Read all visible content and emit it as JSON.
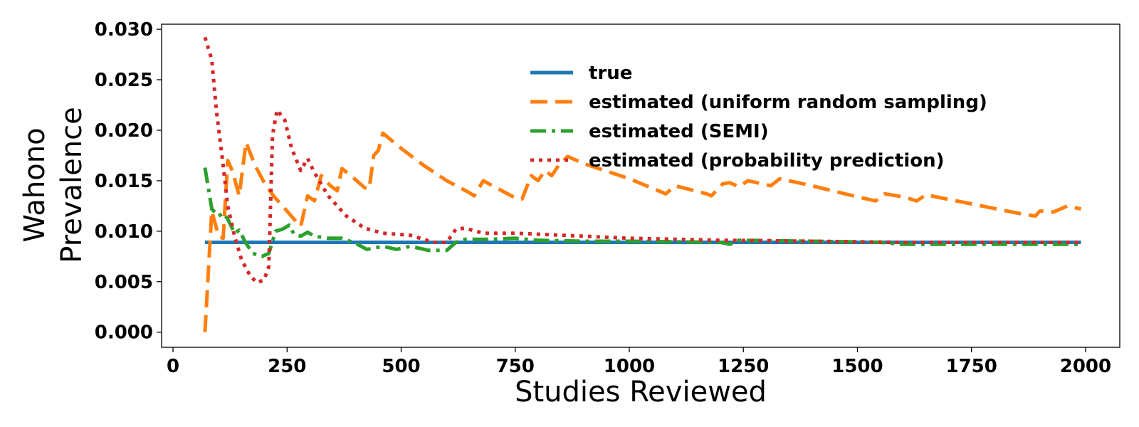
{
  "chart_data": {
    "type": "line",
    "title": "",
    "xlabel": "Studies Reviewed",
    "ylabel_lines": [
      "Wahono",
      "Prevalence"
    ],
    "xlim": [
      -25,
      2075
    ],
    "ylim": [
      -0.0015,
      0.0305
    ],
    "xticks": [
      0,
      250,
      500,
      750,
      1000,
      1250,
      1500,
      1750,
      2000
    ],
    "xtick_labels": [
      "0",
      "250",
      "500",
      "750",
      "1000",
      "1250",
      "1500",
      "1750",
      "2000"
    ],
    "yticks": [
      0.0,
      0.005,
      0.01,
      0.015,
      0.02,
      0.025,
      0.03
    ],
    "ytick_labels": [
      "0.000",
      "0.005",
      "0.010",
      "0.015",
      "0.020",
      "0.025",
      "0.030"
    ],
    "grid": false,
    "legend_position": "upper-center",
    "series": [
      {
        "name": "true",
        "color": "#1f77b4",
        "dash": "solid",
        "points": [
          [
            70,
            0.0089
          ],
          [
            1990,
            0.0089
          ]
        ]
      },
      {
        "name": "estimated (uniform random sampling)",
        "color": "#ff7f0e",
        "dash": "dashed",
        "points": [
          [
            70,
            0.0
          ],
          [
            85,
            0.012
          ],
          [
            100,
            0.0095
          ],
          [
            110,
            0.0093
          ],
          [
            120,
            0.017
          ],
          [
            130,
            0.016
          ],
          [
            145,
            0.0135
          ],
          [
            160,
            0.0188
          ],
          [
            180,
            0.0165
          ],
          [
            200,
            0.0148
          ],
          [
            220,
            0.0135
          ],
          [
            240,
            0.0125
          ],
          [
            265,
            0.0112
          ],
          [
            280,
            0.0105
          ],
          [
            295,
            0.0135
          ],
          [
            310,
            0.013
          ],
          [
            325,
            0.0155
          ],
          [
            345,
            0.0145
          ],
          [
            360,
            0.014
          ],
          [
            370,
            0.0162
          ],
          [
            390,
            0.0155
          ],
          [
            420,
            0.0143
          ],
          [
            430,
            0.0142
          ],
          [
            440,
            0.0175
          ],
          [
            450,
            0.018
          ],
          [
            460,
            0.0197
          ],
          [
            500,
            0.0182
          ],
          [
            550,
            0.0165
          ],
          [
            600,
            0.015
          ],
          [
            650,
            0.0138
          ],
          [
            660,
            0.0135
          ],
          [
            680,
            0.015
          ],
          [
            700,
            0.0145
          ],
          [
            750,
            0.0133
          ],
          [
            765,
            0.0132
          ],
          [
            785,
            0.0155
          ],
          [
            800,
            0.015
          ],
          [
            815,
            0.016
          ],
          [
            830,
            0.0155
          ],
          [
            845,
            0.0165
          ],
          [
            865,
            0.0174
          ],
          [
            900,
            0.0167
          ],
          [
            1000,
            0.0152
          ],
          [
            1080,
            0.0137
          ],
          [
            1100,
            0.0145
          ],
          [
            1170,
            0.0137
          ],
          [
            1180,
            0.0135
          ],
          [
            1205,
            0.0147
          ],
          [
            1220,
            0.0148
          ],
          [
            1240,
            0.0144
          ],
          [
            1260,
            0.015
          ],
          [
            1310,
            0.0145
          ],
          [
            1330,
            0.0152
          ],
          [
            1400,
            0.0145
          ],
          [
            1500,
            0.0134
          ],
          [
            1540,
            0.013
          ],
          [
            1560,
            0.0137
          ],
          [
            1600,
            0.0134
          ],
          [
            1630,
            0.013
          ],
          [
            1650,
            0.0136
          ],
          [
            1750,
            0.0127
          ],
          [
            1850,
            0.0118
          ],
          [
            1890,
            0.0115
          ],
          [
            1900,
            0.012
          ],
          [
            1930,
            0.0119
          ],
          [
            1960,
            0.0125
          ],
          [
            1990,
            0.0122
          ]
        ]
      },
      {
        "name": "estimated (SEMI)",
        "color": "#2ca02c",
        "dash": "dashdot",
        "points": [
          [
            70,
            0.0163
          ],
          [
            85,
            0.0122
          ],
          [
            100,
            0.0115
          ],
          [
            110,
            0.0118
          ],
          [
            120,
            0.0112
          ],
          [
            135,
            0.0098
          ],
          [
            145,
            0.0101
          ],
          [
            160,
            0.0088
          ],
          [
            175,
            0.0078
          ],
          [
            195,
            0.0075
          ],
          [
            210,
            0.0078
          ],
          [
            225,
            0.01
          ],
          [
            240,
            0.0102
          ],
          [
            255,
            0.0106
          ],
          [
            265,
            0.0097
          ],
          [
            280,
            0.0095
          ],
          [
            295,
            0.0099
          ],
          [
            310,
            0.0095
          ],
          [
            340,
            0.0093
          ],
          [
            370,
            0.0093
          ],
          [
            400,
            0.0088
          ],
          [
            425,
            0.0082
          ],
          [
            460,
            0.0085
          ],
          [
            490,
            0.0082
          ],
          [
            520,
            0.0085
          ],
          [
            560,
            0.0081
          ],
          [
            600,
            0.0081
          ],
          [
            620,
            0.0089
          ],
          [
            640,
            0.0092
          ],
          [
            700,
            0.0092
          ],
          [
            750,
            0.0093
          ],
          [
            800,
            0.0091
          ],
          [
            900,
            0.009
          ],
          [
            1000,
            0.009
          ],
          [
            1200,
            0.0089
          ],
          [
            1220,
            0.0087
          ],
          [
            1240,
            0.0091
          ],
          [
            1400,
            0.009
          ],
          [
            1550,
            0.0089
          ],
          [
            1600,
            0.0087
          ],
          [
            1990,
            0.0087
          ]
        ]
      },
      {
        "name": "estimated (probability prediction)",
        "color": "#d62728",
        "dash": "dotted",
        "points": [
          [
            70,
            0.0292
          ],
          [
            85,
            0.027
          ],
          [
            95,
            0.022
          ],
          [
            110,
            0.0165
          ],
          [
            120,
            0.0125
          ],
          [
            135,
            0.0095
          ],
          [
            150,
            0.0072
          ],
          [
            170,
            0.0055
          ],
          [
            185,
            0.0049
          ],
          [
            200,
            0.0052
          ],
          [
            210,
            0.0065
          ],
          [
            218,
            0.0195
          ],
          [
            228,
            0.022
          ],
          [
            245,
            0.021
          ],
          [
            260,
            0.0182
          ],
          [
            280,
            0.016
          ],
          [
            295,
            0.0172
          ],
          [
            310,
            0.0158
          ],
          [
            340,
            0.0135
          ],
          [
            380,
            0.0115
          ],
          [
            420,
            0.0103
          ],
          [
            460,
            0.0098
          ],
          [
            520,
            0.0096
          ],
          [
            570,
            0.0089
          ],
          [
            600,
            0.0089
          ],
          [
            620,
            0.0102
          ],
          [
            640,
            0.0103
          ],
          [
            680,
            0.0098
          ],
          [
            750,
            0.0098
          ],
          [
            800,
            0.0097
          ],
          [
            900,
            0.0095
          ],
          [
            1000,
            0.0093
          ],
          [
            1200,
            0.0091
          ],
          [
            1400,
            0.009
          ],
          [
            1600,
            0.0089
          ],
          [
            1990,
            0.0089
          ]
        ]
      }
    ]
  }
}
